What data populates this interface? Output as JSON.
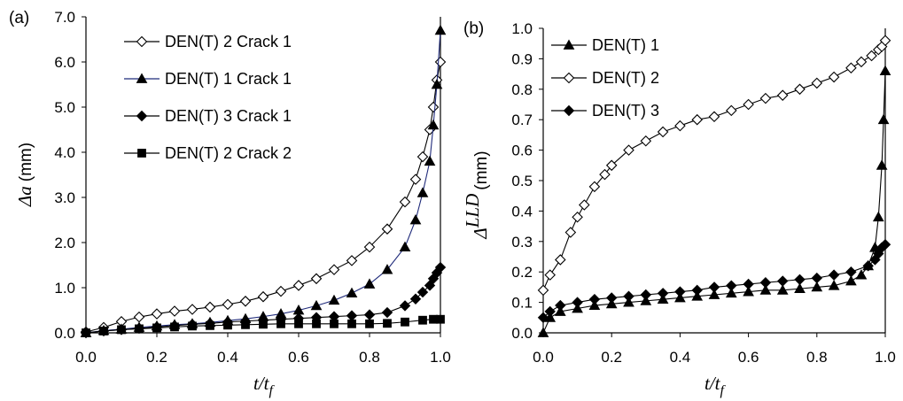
{
  "chart_data": [
    {
      "panel": "(a)",
      "type": "line",
      "xlabel": {
        "main": "t/t",
        "sub": "f"
      },
      "ylabel": {
        "symbol": "Δa",
        "unit": "(mm)"
      },
      "xlim": [
        0.0,
        1.0
      ],
      "ylim": [
        0.0,
        7.0
      ],
      "xticks": [
        "0.0",
        "0.2",
        "0.4",
        "0.6",
        "0.8",
        "1.0"
      ],
      "yticks": [
        "0.0",
        "1.0",
        "2.0",
        "3.0",
        "4.0",
        "5.0",
        "6.0",
        "7.0"
      ],
      "legend": "top-left",
      "series": [
        {
          "name": "DEN(T) 2 Crack 1",
          "marker": "diamond-open",
          "line": "#000000",
          "x": [
            0.0,
            0.05,
            0.1,
            0.15,
            0.2,
            0.25,
            0.3,
            0.35,
            0.4,
            0.45,
            0.5,
            0.55,
            0.6,
            0.65,
            0.7,
            0.75,
            0.8,
            0.85,
            0.9,
            0.93,
            0.95,
            0.97,
            0.98,
            0.99,
            1.0
          ],
          "y": [
            0.02,
            0.12,
            0.25,
            0.35,
            0.42,
            0.48,
            0.52,
            0.57,
            0.63,
            0.7,
            0.8,
            0.92,
            1.05,
            1.2,
            1.4,
            1.6,
            1.9,
            2.3,
            2.9,
            3.4,
            3.9,
            4.5,
            5.0,
            5.6,
            6.0
          ]
        },
        {
          "name": "DEN(T) 1 Crack 1",
          "marker": "triangle",
          "line": "#1f2a7a",
          "x": [
            0.0,
            0.05,
            0.1,
            0.15,
            0.2,
            0.25,
            0.3,
            0.35,
            0.4,
            0.45,
            0.5,
            0.55,
            0.6,
            0.65,
            0.7,
            0.75,
            0.8,
            0.85,
            0.9,
            0.93,
            0.95,
            0.97,
            0.98,
            0.99,
            1.0
          ],
          "y": [
            0.0,
            0.05,
            0.08,
            0.12,
            0.15,
            0.18,
            0.2,
            0.23,
            0.27,
            0.31,
            0.36,
            0.42,
            0.5,
            0.6,
            0.72,
            0.88,
            1.08,
            1.4,
            1.9,
            2.5,
            3.1,
            3.8,
            4.6,
            5.5,
            6.7
          ]
        },
        {
          "name": "DEN(T) 3 Crack 1",
          "marker": "diamond",
          "line": "#000000",
          "x": [
            0.0,
            0.05,
            0.1,
            0.15,
            0.2,
            0.25,
            0.3,
            0.35,
            0.4,
            0.45,
            0.5,
            0.55,
            0.6,
            0.65,
            0.7,
            0.75,
            0.8,
            0.85,
            0.9,
            0.93,
            0.95,
            0.97,
            0.98,
            0.99,
            1.0
          ],
          "y": [
            0.0,
            0.04,
            0.07,
            0.1,
            0.13,
            0.16,
            0.19,
            0.21,
            0.24,
            0.26,
            0.28,
            0.3,
            0.32,
            0.34,
            0.36,
            0.38,
            0.4,
            0.45,
            0.6,
            0.75,
            0.9,
            1.05,
            1.2,
            1.33,
            1.45
          ]
        },
        {
          "name": "DEN(T) 2 Crack 2",
          "marker": "square",
          "line": "#000000",
          "x": [
            0.0,
            0.05,
            0.1,
            0.15,
            0.2,
            0.25,
            0.3,
            0.35,
            0.4,
            0.45,
            0.5,
            0.55,
            0.6,
            0.65,
            0.7,
            0.75,
            0.8,
            0.85,
            0.9,
            0.95,
            0.98,
            1.0
          ],
          "y": [
            0.0,
            0.04,
            0.07,
            0.09,
            0.11,
            0.13,
            0.15,
            0.16,
            0.17,
            0.18,
            0.19,
            0.2,
            0.2,
            0.2,
            0.2,
            0.2,
            0.2,
            0.21,
            0.24,
            0.28,
            0.3,
            0.3
          ]
        }
      ]
    },
    {
      "panel": "(b)",
      "type": "line",
      "xlabel": {
        "main": "t/t",
        "sub": "f"
      },
      "ylabel": {
        "symbol": "Δ",
        "sup": "LLD",
        "unit": "(mm)"
      },
      "xlim": [
        0.0,
        1.0
      ],
      "ylim": [
        0.0,
        1.0
      ],
      "xticks": [
        "0.0",
        "0.2",
        "0.4",
        "0.6",
        "0.8",
        "1.0"
      ],
      "yticks": [
        "0.0",
        "0.1",
        "0.2",
        "0.3",
        "0.4",
        "0.5",
        "0.6",
        "0.7",
        "0.8",
        "0.9",
        "1.0"
      ],
      "legend": "top-left",
      "series": [
        {
          "name": "DEN(T) 1",
          "marker": "triangle",
          "line": "#000000",
          "x": [
            0.0,
            0.02,
            0.05,
            0.1,
            0.15,
            0.2,
            0.25,
            0.3,
            0.35,
            0.4,
            0.45,
            0.5,
            0.55,
            0.6,
            0.65,
            0.7,
            0.75,
            0.8,
            0.85,
            0.9,
            0.93,
            0.95,
            0.97,
            0.98,
            0.99,
            0.995,
            1.0
          ],
          "y": [
            0.0,
            0.05,
            0.07,
            0.08,
            0.09,
            0.095,
            0.1,
            0.105,
            0.11,
            0.115,
            0.12,
            0.125,
            0.13,
            0.135,
            0.14,
            0.14,
            0.145,
            0.15,
            0.155,
            0.17,
            0.19,
            0.22,
            0.28,
            0.38,
            0.55,
            0.7,
            0.86
          ]
        },
        {
          "name": "DEN(T) 2",
          "marker": "diamond-open",
          "line": "#000000",
          "x": [
            0.0,
            0.02,
            0.05,
            0.08,
            0.1,
            0.12,
            0.15,
            0.18,
            0.2,
            0.25,
            0.3,
            0.35,
            0.4,
            0.45,
            0.5,
            0.55,
            0.6,
            0.65,
            0.7,
            0.75,
            0.8,
            0.85,
            0.9,
            0.93,
            0.96,
            0.98,
            0.99,
            1.0
          ],
          "y": [
            0.14,
            0.19,
            0.24,
            0.33,
            0.38,
            0.42,
            0.48,
            0.52,
            0.55,
            0.6,
            0.63,
            0.66,
            0.68,
            0.7,
            0.71,
            0.73,
            0.75,
            0.77,
            0.78,
            0.8,
            0.82,
            0.84,
            0.87,
            0.89,
            0.91,
            0.93,
            0.94,
            0.96
          ]
        },
        {
          "name": "DEN(T) 3",
          "marker": "diamond",
          "line": "#000000",
          "x": [
            0.0,
            0.02,
            0.05,
            0.1,
            0.15,
            0.2,
            0.25,
            0.3,
            0.35,
            0.4,
            0.45,
            0.5,
            0.55,
            0.6,
            0.65,
            0.7,
            0.75,
            0.8,
            0.85,
            0.9,
            0.95,
            0.97,
            0.98,
            0.99,
            1.0
          ],
          "y": [
            0.05,
            0.07,
            0.09,
            0.1,
            0.11,
            0.115,
            0.12,
            0.125,
            0.13,
            0.135,
            0.14,
            0.15,
            0.155,
            0.16,
            0.165,
            0.17,
            0.175,
            0.18,
            0.19,
            0.2,
            0.22,
            0.24,
            0.26,
            0.28,
            0.29
          ]
        }
      ]
    }
  ]
}
